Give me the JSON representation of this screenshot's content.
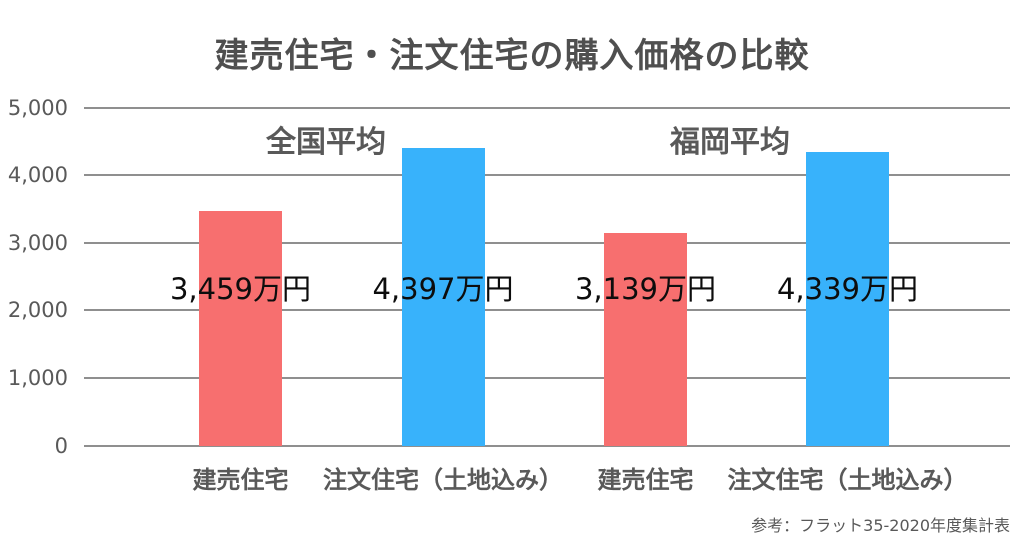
{
  "title": "建売住宅・注文住宅の購入価格の比較",
  "source_note": "参考：フラット35-2020年度集計表",
  "colors": {
    "red_bar": "#F76F6F",
    "blue_bar": "#38B2FB",
    "title_text": "#4f4f4f",
    "axis_text": "#595959",
    "gridline": "#8f8f8f",
    "value_text": "#0d0d0d",
    "background": "#ffffff"
  },
  "chart_data": {
    "type": "bar",
    "title": "建売住宅・注文住宅の購入価格の比較",
    "unit": "万円",
    "grid": true,
    "legend": "none",
    "y_axis": {
      "min": 0,
      "max": 5000,
      "tick_step": 1000,
      "tick_labels": [
        "0",
        "1,000",
        "2,000",
        "3,000",
        "4,000",
        "5,000"
      ]
    },
    "groups": [
      {
        "label": "全国平均",
        "bars": [
          {
            "category": "建売住宅",
            "value": 3459,
            "value_label": "3,459万円",
            "color_key": "red_bar"
          },
          {
            "category": "注文住宅（土地込み）",
            "value": 4397,
            "value_label": "4,397万円",
            "color_key": "blue_bar"
          }
        ]
      },
      {
        "label": "福岡平均",
        "bars": [
          {
            "category": "建売住宅",
            "value": 3139,
            "value_label": "3,139万円",
            "color_key": "red_bar"
          },
          {
            "category": "注文住宅（土地込み）",
            "value": 4339,
            "value_label": "4,339万円",
            "color_key": "blue_bar"
          }
        ]
      }
    ]
  }
}
